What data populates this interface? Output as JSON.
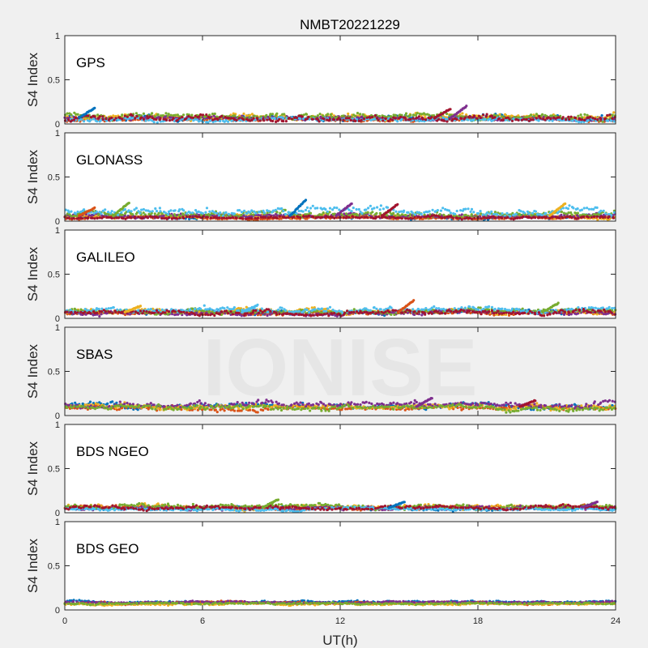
{
  "figure": {
    "title": "NMBT20221229",
    "xlabel": "UT(h)",
    "watermark": "IONISE"
  },
  "colors": {
    "background": "#f0f0f0",
    "axes_background": "#ffffff",
    "axis": "#262626",
    "watermark": "#e6e6e6",
    "series": [
      "#0072bd",
      "#d95319",
      "#edb120",
      "#7e2f8e",
      "#77ac30",
      "#4dbeee",
      "#a2142f"
    ]
  },
  "chart_data": [
    {
      "type": "scatter",
      "panel_label": "GPS",
      "ylabel": "S4 Index",
      "xlim": [
        0,
        24
      ],
      "ylim": [
        0,
        1
      ],
      "xticks": [
        0,
        6,
        12,
        18,
        24
      ],
      "yticks": [
        0,
        0.5,
        1
      ],
      "grid": false,
      "series_shape": "dense noisy point bands across full day (one color per satellite)",
      "typical_s4": 0.07,
      "bands": [
        {
          "x": [
            0,
            24
          ],
          "level": 0.07,
          "spread": 0.03
        },
        {
          "x": [
            0,
            24
          ],
          "level": 0.05,
          "spread": 0.02
        },
        {
          "x": [
            0,
            24
          ],
          "level": 0.08,
          "spread": 0.03
        },
        {
          "x": [
            0,
            24
          ],
          "level": 0.06,
          "spread": 0.02
        },
        {
          "x": [
            0,
            24
          ],
          "level": 0.09,
          "spread": 0.03
        },
        {
          "x": [
            0,
            24
          ],
          "level": 0.05,
          "spread": 0.02
        },
        {
          "x": [
            0,
            24
          ],
          "level": 0.06,
          "spread": 0.03
        }
      ],
      "peaks": [
        {
          "x": 1.3,
          "y": 0.18
        },
        {
          "x": 17.5,
          "y": 0.2
        },
        {
          "x": 16.8,
          "y": 0.17
        }
      ]
    },
    {
      "type": "scatter",
      "panel_label": "GLONASS",
      "ylabel": "S4 Index",
      "xlim": [
        0,
        24
      ],
      "ylim": [
        0,
        1
      ],
      "xticks": [
        0,
        6,
        12,
        18,
        24
      ],
      "yticks": [
        0,
        0.5,
        1
      ],
      "grid": false,
      "series_shape": "satellite arcs with elevated values near arc edges",
      "typical_s4": 0.06,
      "bands": [
        {
          "x": [
            0,
            24
          ],
          "level": 0.05,
          "spread": 0.02
        },
        {
          "x": [
            0,
            24
          ],
          "level": 0.04,
          "spread": 0.015
        },
        {
          "x": [
            0,
            24
          ],
          "level": 0.05,
          "spread": 0.02
        },
        {
          "x": [
            0,
            24
          ],
          "level": 0.06,
          "spread": 0.02
        },
        {
          "x": [
            0,
            24
          ],
          "level": 0.08,
          "spread": 0.03
        },
        {
          "x": [
            0,
            24
          ],
          "level": 0.11,
          "spread": 0.04
        },
        {
          "x": [
            0,
            24
          ],
          "level": 0.04,
          "spread": 0.015
        }
      ],
      "peaks": [
        {
          "x": 1.3,
          "y": 0.15
        },
        {
          "x": 2.8,
          "y": 0.21
        },
        {
          "x": 10.5,
          "y": 0.24
        },
        {
          "x": 12.5,
          "y": 0.2
        },
        {
          "x": 14.5,
          "y": 0.19
        },
        {
          "x": 21.8,
          "y": 0.2
        }
      ]
    },
    {
      "type": "scatter",
      "panel_label": "GALILEO",
      "ylabel": "S4 Index",
      "xlim": [
        0,
        24
      ],
      "ylim": [
        0,
        1
      ],
      "xticks": [
        0,
        6,
        12,
        18,
        24
      ],
      "yticks": [
        0,
        0.5,
        1
      ],
      "grid": false,
      "series_shape": "satellite arcs",
      "typical_s4": 0.07,
      "bands": [
        {
          "x": [
            0,
            24
          ],
          "level": 0.07,
          "spread": 0.025
        },
        {
          "x": [
            0,
            24
          ],
          "level": 0.06,
          "spread": 0.02
        },
        {
          "x": [
            0,
            24
          ],
          "level": 0.08,
          "spread": 0.025
        },
        {
          "x": [
            0,
            24
          ],
          "level": 0.06,
          "spread": 0.02
        },
        {
          "x": [
            0,
            24
          ],
          "level": 0.08,
          "spread": 0.025
        },
        {
          "x": [
            0,
            24
          ],
          "level": 0.1,
          "spread": 0.03
        },
        {
          "x": [
            0,
            24
          ],
          "level": 0.07,
          "spread": 0.025
        }
      ],
      "peaks": [
        {
          "x": 3.3,
          "y": 0.14
        },
        {
          "x": 8.4,
          "y": 0.15
        },
        {
          "x": 15.2,
          "y": 0.2
        },
        {
          "x": 21.5,
          "y": 0.17
        }
      ]
    },
    {
      "type": "scatter",
      "panel_label": "SBAS",
      "ylabel": "S4 Index",
      "xlim": [
        0,
        24
      ],
      "ylim": [
        0,
        1
      ],
      "xticks": [
        0,
        6,
        12,
        18,
        24
      ],
      "yticks": [
        0,
        0.5,
        1
      ],
      "grid": false,
      "series_shape": "flat dense noisy bands",
      "typical_s4": 0.1,
      "bands": [
        {
          "x": [
            0,
            24
          ],
          "level": 0.11,
          "spread": 0.03
        },
        {
          "x": [
            0,
            24
          ],
          "level": 0.08,
          "spread": 0.025
        },
        {
          "x": [
            0,
            24
          ],
          "level": 0.1,
          "spread": 0.03
        },
        {
          "x": [
            0,
            24
          ],
          "level": 0.12,
          "spread": 0.03
        },
        {
          "x": [
            0,
            24
          ],
          "level": 0.09,
          "spread": 0.03
        }
      ],
      "peaks": [
        {
          "x": 16.0,
          "y": 0.2
        },
        {
          "x": 20.5,
          "y": 0.17
        }
      ]
    },
    {
      "type": "scatter",
      "panel_label": "BDS NGEO",
      "ylabel": "S4 Index",
      "xlim": [
        0,
        24
      ],
      "ylim": [
        0,
        1
      ],
      "xticks": [
        0,
        6,
        12,
        18,
        24
      ],
      "yticks": [
        0,
        0.5,
        1
      ],
      "grid": false,
      "series_shape": "satellite arcs",
      "typical_s4": 0.06,
      "bands": [
        {
          "x": [
            0,
            24
          ],
          "level": 0.05,
          "spread": 0.02
        },
        {
          "x": [
            0,
            24
          ],
          "level": 0.06,
          "spread": 0.02
        },
        {
          "x": [
            0,
            24
          ],
          "level": 0.07,
          "spread": 0.025
        },
        {
          "x": [
            0,
            24
          ],
          "level": 0.05,
          "spread": 0.02
        },
        {
          "x": [
            0,
            24
          ],
          "level": 0.07,
          "spread": 0.025
        },
        {
          "x": [
            0,
            24
          ],
          "level": 0.04,
          "spread": 0.015
        },
        {
          "x": [
            0,
            24
          ],
          "level": 0.06,
          "spread": 0.02
        }
      ],
      "peaks": [
        {
          "x": 9.3,
          "y": 0.15
        },
        {
          "x": 14.8,
          "y": 0.12
        },
        {
          "x": 23.2,
          "y": 0.12
        }
      ]
    },
    {
      "type": "scatter",
      "panel_label": "BDS GEO",
      "ylabel": "S4 Index",
      "xlim": [
        0,
        24
      ],
      "ylim": [
        0,
        1
      ],
      "xticks": [
        0,
        6,
        12,
        18,
        24
      ],
      "yticks": [
        0,
        0.5,
        1
      ],
      "grid": false,
      "series_shape": "flat tight bands",
      "typical_s4": 0.08,
      "bands": [
        {
          "x": [
            0,
            24
          ],
          "level": 0.09,
          "spread": 0.012
        },
        {
          "x": [
            0,
            24
          ],
          "level": 0.08,
          "spread": 0.012
        },
        {
          "x": [
            0,
            24
          ],
          "level": 0.07,
          "spread": 0.012
        },
        {
          "x": [
            0,
            24
          ],
          "level": 0.085,
          "spread": 0.01
        },
        {
          "x": [
            0,
            24
          ],
          "level": 0.075,
          "spread": 0.01
        }
      ],
      "peaks": []
    }
  ]
}
